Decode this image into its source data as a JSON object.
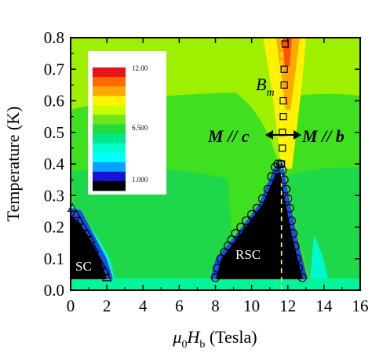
{
  "chart_data": {
    "type": "heatmap",
    "xlabel": "μ0Hb (Tesla)",
    "xlabel_parts": {
      "mu": "μ",
      "sub0": "0",
      "H": "H",
      "subb": "b",
      "unit": " (Tesla)"
    },
    "ylabel": "Temperature (K)",
    "xlim": [
      0,
      16
    ],
    "ylim": [
      0,
      0.8
    ],
    "x_ticks": [
      0,
      2,
      4,
      6,
      8,
      10,
      12,
      14,
      16
    ],
    "x_tick_labels": [
      "0",
      "2",
      "4",
      "6",
      "8",
      "10",
      "12",
      "14",
      "16"
    ],
    "y_ticks": [
      0.0,
      0.1,
      0.2,
      0.3,
      0.4,
      0.5,
      0.6,
      0.7,
      0.8
    ],
    "y_tick_labels": [
      "0.0",
      "0.1",
      "0.2",
      "0.3",
      "0.4",
      "0.5",
      "0.6",
      "0.7",
      "0.8"
    ],
    "colorbar": {
      "labels": [
        "12.00",
        "6.500",
        "1.000"
      ],
      "label_values": [
        12.0,
        6.5,
        1.0
      ],
      "colors": [
        "#e8141a",
        "#ff6a00",
        "#ffa800",
        "#fff200",
        "#c8ff00",
        "#6ee61e",
        "#22dc3c",
        "#00e68c",
        "#00ffcc",
        "#00ffff",
        "#0aa0ff",
        "#1414d2",
        "#000000"
      ]
    },
    "annotations": {
      "sc": "SC",
      "rsc": "RSC",
      "bm_main": "B",
      "bm_sub": "m",
      "m_parallel_c": "M // c",
      "m_parallel_b": "M // b"
    },
    "series": [
      {
        "marker": "triangle",
        "x": [
          0.1,
          0.3,
          0.5,
          0.7,
          0.9,
          1.1,
          1.3,
          1.5,
          1.7,
          1.9,
          2.0
        ],
        "y": [
          0.26,
          0.24,
          0.22,
          0.2,
          0.18,
          0.16,
          0.13,
          0.1,
          0.08,
          0.06,
          0.04
        ]
      },
      {
        "marker": "circle",
        "x": [
          8.0,
          8.1,
          8.3,
          8.5,
          8.7,
          8.9,
          9.1,
          9.4,
          9.7,
          10.0,
          10.3,
          10.6,
          10.9,
          11.1,
          11.3,
          11.45,
          11.6,
          11.7,
          11.8,
          11.9,
          12.0,
          12.1,
          12.2,
          12.3,
          12.4,
          12.5,
          12.6,
          12.8
        ],
        "y": [
          0.04,
          0.07,
          0.1,
          0.12,
          0.14,
          0.16,
          0.18,
          0.2,
          0.22,
          0.24,
          0.26,
          0.29,
          0.32,
          0.36,
          0.39,
          0.4,
          0.4,
          0.38,
          0.35,
          0.32,
          0.29,
          0.26,
          0.22,
          0.18,
          0.14,
          0.1,
          0.07,
          0.04
        ]
      },
      {
        "marker": "square",
        "x": [
          11.85,
          11.8,
          11.8,
          11.75,
          11.75,
          11.7,
          11.7,
          11.65
        ],
        "y": [
          0.78,
          0.7,
          0.65,
          0.6,
          0.55,
          0.5,
          0.45,
          0.4
        ]
      }
    ],
    "boundary_line": {
      "x": 11.65,
      "y_range": [
        0.0,
        0.8
      ],
      "style": "dashed",
      "color": "#ffff55"
    },
    "grid": false,
    "legend": "colorbar top-left"
  }
}
